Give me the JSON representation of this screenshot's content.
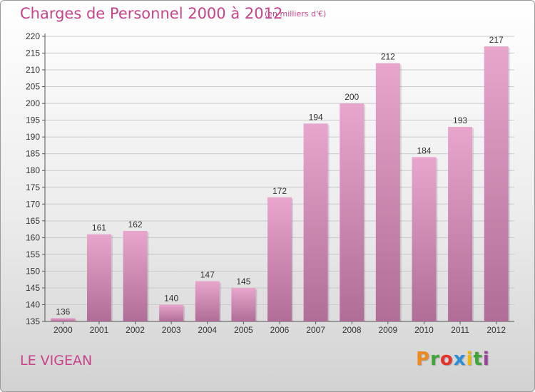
{
  "header": {
    "title": "Charges de Personnel 2000 à 2012",
    "subtitle": "(en milliers d'€)"
  },
  "footer": {
    "commune": "LE VIGEAN",
    "logo_text": "Proxiti",
    "logo_letter_colors": [
      "#f08a1c",
      "#3fa535",
      "#e5332a",
      "#2a8fd6",
      "#f2b705",
      "#3fa535",
      "#9c3fa0"
    ]
  },
  "colors": {
    "accent": "#c8438a",
    "bar_top": "#e8a6cc",
    "bar_bottom": "#b06e96",
    "grid": "#c9c9c9",
    "text": "#333333"
  },
  "chart_data": {
    "type": "bar",
    "categories": [
      "2000",
      "2001",
      "2002",
      "2003",
      "2004",
      "2005",
      "2006",
      "2007",
      "2008",
      "2009",
      "2010",
      "2011",
      "2012"
    ],
    "values": [
      136,
      161,
      162,
      140,
      147,
      145,
      172,
      194,
      200,
      212,
      184,
      193,
      217
    ],
    "data_labels": [
      "136",
      "161",
      "162",
      "140",
      "147",
      "145",
      "172",
      "194",
      "200",
      "212",
      "184",
      "193",
      "217"
    ],
    "yticks": [
      "135",
      "140",
      "145",
      "150",
      "155",
      "160",
      "165",
      "170",
      "175",
      "180",
      "185",
      "190",
      "195",
      "200",
      "205",
      "210",
      "215",
      "220"
    ],
    "ylim": [
      135,
      220
    ],
    "grid": true
  }
}
